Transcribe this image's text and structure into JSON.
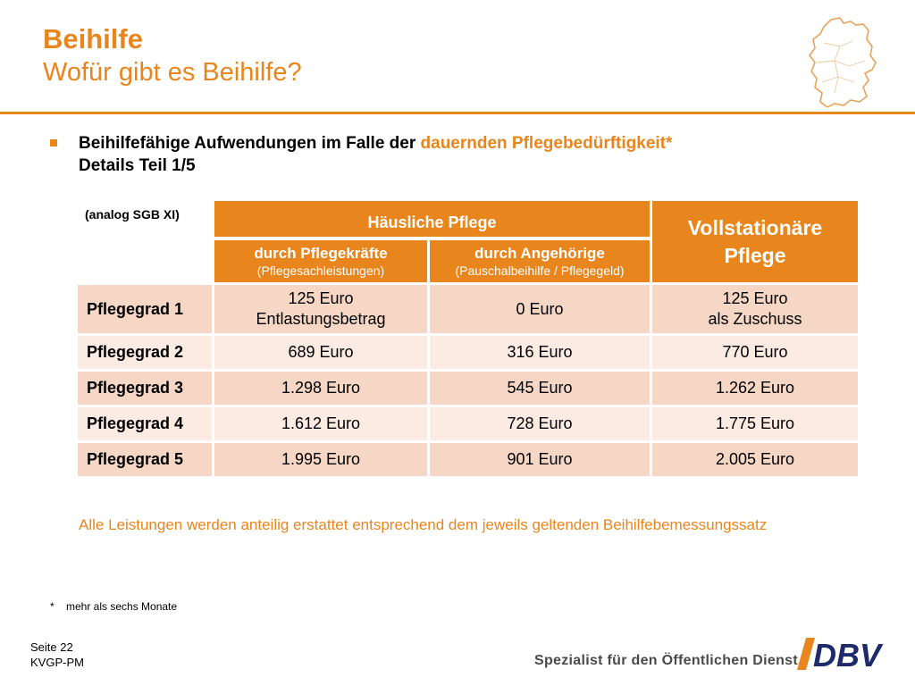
{
  "header": {
    "title": "Beihilfe",
    "subtitle": "Wofür gibt es Beihilfe?"
  },
  "bullet": {
    "text_before": "Beihilfefähige Aufwendungen im Falle der ",
    "highlight": "dauernden Pflegebedürftigkeit*",
    "line2": "Details Teil 1/5"
  },
  "table": {
    "corner_label": "(analog SGB XI)",
    "group_header": "Häusliche Pflege",
    "col1_title": "durch Pflegekräfte",
    "col1_sub": "(Pflegesachleistungen)",
    "col2_title": "durch Angehörige",
    "col2_sub": "(Pauschalbeihilfe / Pflegegeld)",
    "col3_title_line1": "Vollstationäre",
    "col3_title_line2": "Pflege",
    "rows": [
      {
        "label": "Pflegegrad 1",
        "c1_line1": "125 Euro",
        "c1_line2": "Entlastungsbetrag",
        "c2": "0 Euro",
        "c3_line1": "125 Euro",
        "c3_line2": "als Zuschuss"
      },
      {
        "label": "Pflegegrad 2",
        "c1": "689 Euro",
        "c2": "316 Euro",
        "c3": "770 Euro"
      },
      {
        "label": "Pflegegrad 3",
        "c1": "1.298 Euro",
        "c2": "545 Euro",
        "c3": "1.262 Euro"
      },
      {
        "label": "Pflegegrad 4",
        "c1": "1.612 Euro",
        "c2": "728 Euro",
        "c3": "1.775 Euro"
      },
      {
        "label": "Pflegegrad 5",
        "c1": "1.995 Euro",
        "c2": "901 Euro",
        "c3": "2.005 Euro"
      }
    ]
  },
  "note": "Alle Leistungen werden anteilig erstattet entsprechend dem jeweils geltenden Beihilfebemessungssatz",
  "footnote": "*    mehr als sechs Monate",
  "footer": {
    "page": "Seite 22",
    "code": "KVGP-PM",
    "slogan": "Spezialist für den Öffentlichen Dienst.",
    "logo_text": "DBV"
  },
  "colors": {
    "accent": "#e8851c",
    "cell_dark": "#f6d7c5",
    "cell_light": "#fbebe2"
  },
  "icons": [
    "germany-map-icon",
    "dbv-logo"
  ]
}
